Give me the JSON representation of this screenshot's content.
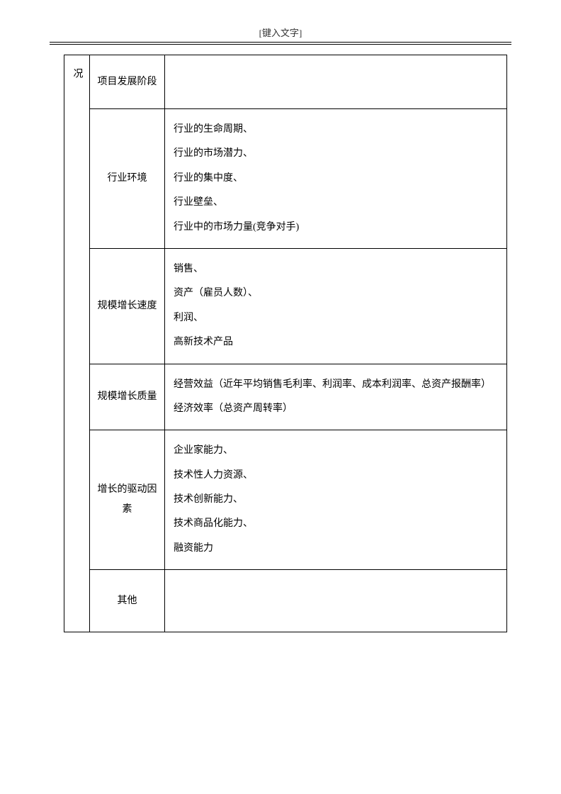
{
  "header": {
    "placeholder": "[键入文字]"
  },
  "table": {
    "left_label": "况",
    "rows": [
      {
        "label": "项目发展阶段",
        "items": []
      },
      {
        "label": "行业环境",
        "items": [
          "行业的生命周期、",
          "行业的市场潜力、",
          "行业的集中度、",
          "行业壁垒、",
          "行业中的市场力量(竞争对手)"
        ]
      },
      {
        "label": "规模增长速度",
        "items": [
          "销售、",
          "资产（雇员人数）、",
          "利润、",
          "高新技术产品"
        ]
      },
      {
        "label": "规模增长质量",
        "items": [
          "经营效益（近年平均销售毛利率、利润率、成本利润率、总资产报酬率）",
          "经济效率（总资产周转率）"
        ]
      },
      {
        "label": "增长的驱动因素",
        "items": [
          "企业家能力、",
          "技术性人力资源、",
          "技术创新能力、",
          "技术商品化能力、",
          "融资能力"
        ]
      },
      {
        "label": "其他",
        "items": []
      }
    ]
  },
  "style": {
    "page_bg": "#ffffff",
    "border_color": "#000000",
    "text_color": "#000000",
    "font_size": 14
  }
}
